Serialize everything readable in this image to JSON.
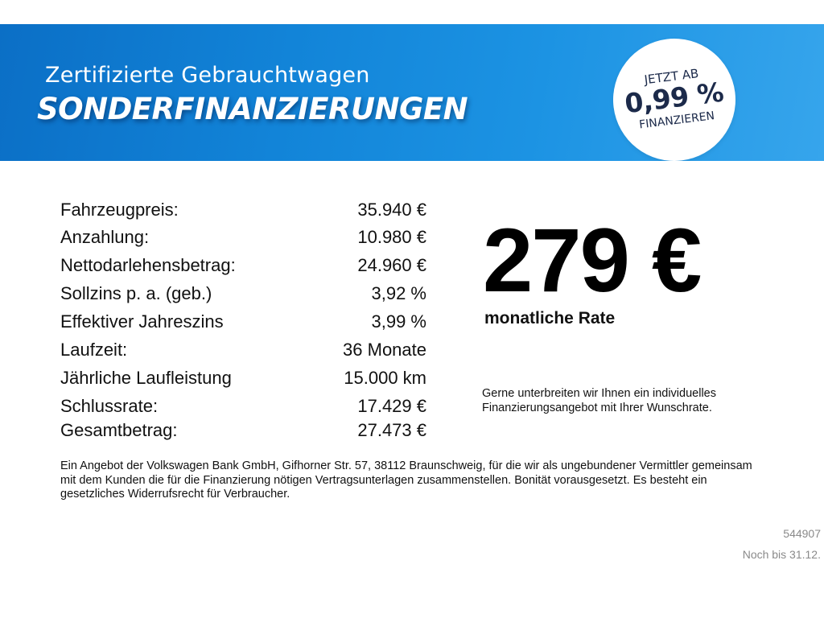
{
  "banner": {
    "subtitle": "Zertifizierte Gebrauchtwagen",
    "title": "SONDERFINANZIERUNGEN",
    "badge": {
      "line1": "JETZT AB",
      "line2": "0,99 %",
      "line3": "FINANZIEREN"
    }
  },
  "terms": [
    {
      "label": "Fahrzeugpreis:",
      "value": "35.940 €"
    },
    {
      "label": "Anzahlung:",
      "value": "10.980 €"
    },
    {
      "label": "Nettodarlehensbetrag:",
      "value": "24.960 €"
    },
    {
      "label": "Sollzins p. a. (geb.)",
      "value": "3,92 %"
    },
    {
      "label": "Effektiver Jahreszins",
      "value": "3,99 %"
    },
    {
      "label": "Laufzeit:",
      "value": "36 Monate"
    },
    {
      "label": "Jährliche Laufleistung",
      "value": "15.000 km"
    },
    {
      "label": "Schlussrate:",
      "value": "17.429 €"
    },
    {
      "label": "Gesamtbetrag:",
      "value": "27.473 €"
    }
  ],
  "rate": {
    "amount": "279 €",
    "label": "monatliche Rate"
  },
  "offer_note": "Gerne unterbreiten wir Ihnen ein individuelles Finanzierungsangebot mit Ihrer Wunschrate.",
  "disclaimer": "Ein Angebot der Volkswagen Bank GmbH, Gifhorner Str. 57, 38112 Braunschweig, für die wir als ungebundener Vermittler gemeinsam mit dem Kunden die für die Finanzierung nötigen Vertragsunterlagen zusammenstellen. Bonität vorausgesetzt. Es besteht ein gesetzliches Widerrufsrecht für Verbraucher.",
  "footer": {
    "ref_id": "544907",
    "valid_until": "Noch bis 31.12."
  },
  "colors": {
    "banner_blue": "#1284d8",
    "badge_text": "#1c2a4a",
    "footer_gray": "#8a8a8a"
  }
}
